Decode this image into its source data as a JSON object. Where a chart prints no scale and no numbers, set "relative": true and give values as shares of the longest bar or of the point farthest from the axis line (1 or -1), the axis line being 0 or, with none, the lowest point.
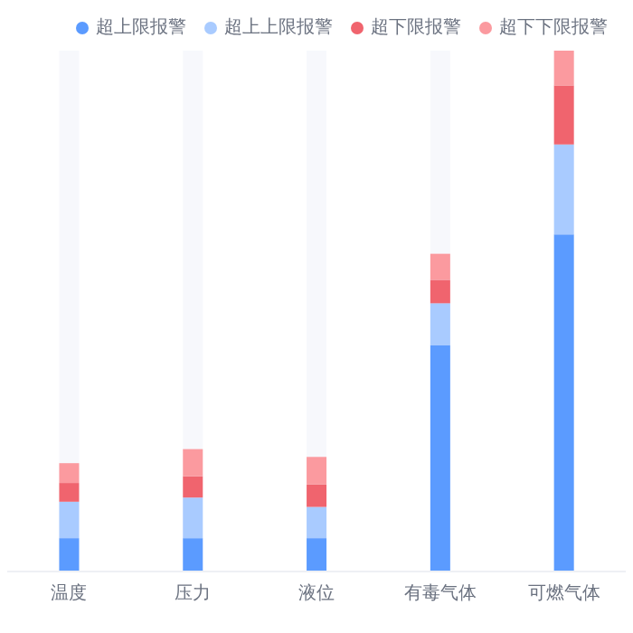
{
  "chart_data": {
    "type": "bar",
    "stacked": true,
    "relative": true,
    "legend": "top right",
    "categories": [
      "温度",
      "压力",
      "液位",
      "有毒气体",
      "可燃气体"
    ],
    "series": [
      {
        "name": "超上限报警",
        "color": "#5b9bff",
        "values": [
          0.064,
          0.064,
          0.064,
          0.435,
          0.647
        ]
      },
      {
        "name": "超上上限报警",
        "color": "#a9cbff",
        "values": [
          0.07,
          0.078,
          0.06,
          0.08,
          0.173
        ]
      },
      {
        "name": "超下限报警",
        "color": "#f0646e",
        "values": [
          0.036,
          0.041,
          0.043,
          0.045,
          0.113
        ]
      },
      {
        "name": "超下下限报警",
        "color": "#fb9a9f",
        "values": [
          0.038,
          0.052,
          0.053,
          0.05,
          0.067
        ]
      }
    ]
  }
}
